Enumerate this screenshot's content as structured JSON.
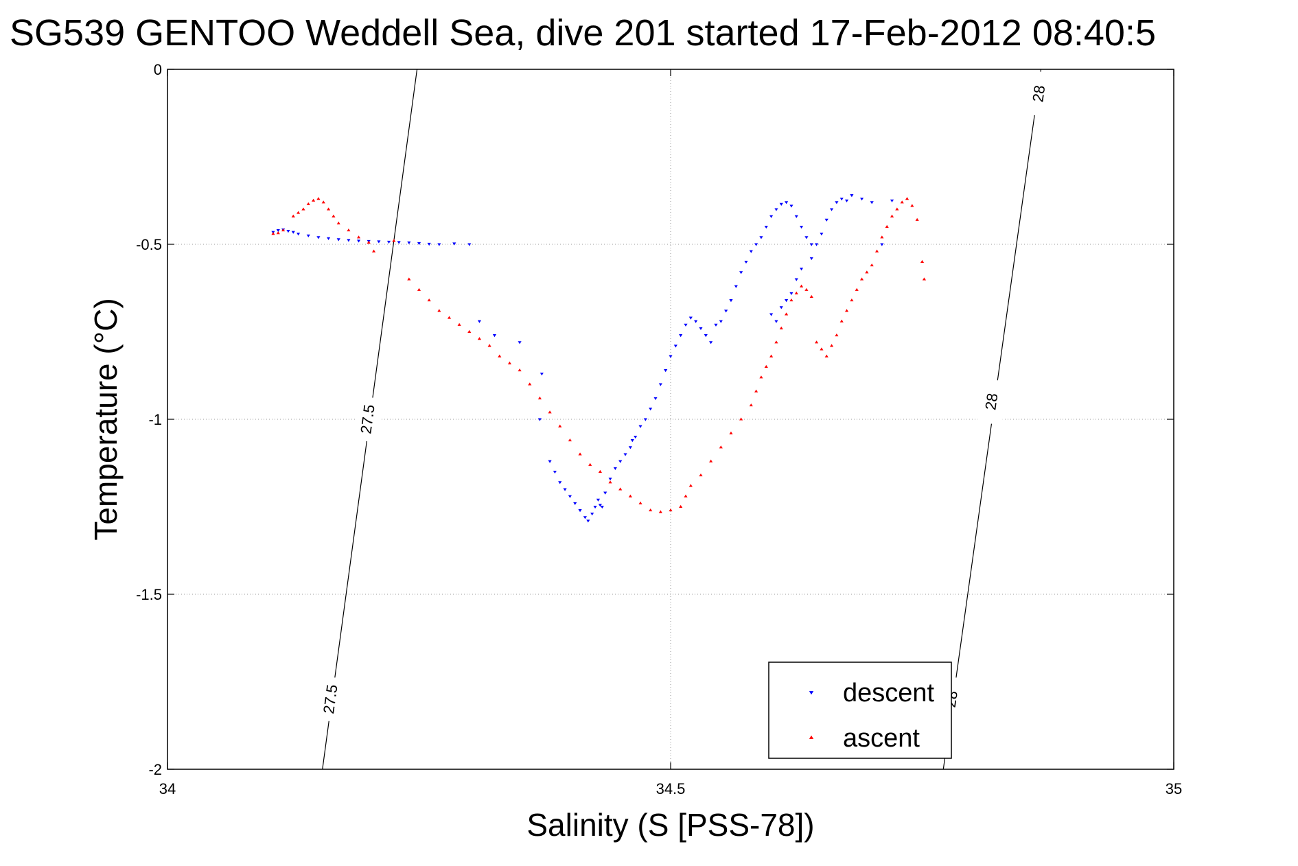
{
  "chart_data": {
    "type": "scatter",
    "title": "SG539 GENTOO Weddell Sea, dive 201 started 17-Feb-2012 08:40:5",
    "xlabel": "Salinity (S [PSS-78])",
    "ylabel": "Temperature (°C)",
    "xlim": [
      34,
      35
    ],
    "ylim": [
      -2,
      0
    ],
    "x_ticks": [
      34,
      34.5,
      35
    ],
    "x_tick_labels": [
      "34",
      "34.5",
      "35"
    ],
    "y_ticks": [
      0,
      -0.5,
      -1,
      -1.5,
      -2
    ],
    "y_tick_labels": [
      "0",
      "-0.5",
      "-1",
      "-1.5",
      "-2"
    ],
    "grid": true,
    "legend_position": "bottom-right",
    "contours": [
      {
        "value": 27.5,
        "points": [
          [
            34.248,
            0
          ],
          [
            34.154,
            -2
          ]
        ],
        "labels": [
          {
            "text": "27.5",
            "x": 34.2,
            "y": -1.0
          },
          {
            "text": "27.5",
            "x": 34.163,
            "y": -1.8
          }
        ]
      },
      {
        "value": 28,
        "points": [
          [
            34.868,
            0
          ],
          [
            34.771,
            -2
          ]
        ],
        "labels": [
          {
            "text": "28",
            "x": 34.867,
            "y": -0.07
          },
          {
            "text": "28",
            "x": 34.82,
            "y": -0.95
          },
          {
            "text": "28",
            "x": 34.78,
            "y": -1.8
          }
        ]
      }
    ],
    "series": [
      {
        "name": "descent",
        "marker": "triangle-down",
        "color": "#0000ff",
        "points": [
          [
            34.105,
            -0.465
          ],
          [
            34.11,
            -0.46
          ],
          [
            34.115,
            -0.458
          ],
          [
            34.12,
            -0.462
          ],
          [
            34.125,
            -0.465
          ],
          [
            34.13,
            -0.47
          ],
          [
            34.14,
            -0.475
          ],
          [
            34.15,
            -0.48
          ],
          [
            34.16,
            -0.483
          ],
          [
            34.17,
            -0.486
          ],
          [
            34.18,
            -0.488
          ],
          [
            34.19,
            -0.49
          ],
          [
            34.2,
            -0.491
          ],
          [
            34.21,
            -0.492
          ],
          [
            34.22,
            -0.493
          ],
          [
            34.23,
            -0.494
          ],
          [
            34.24,
            -0.495
          ],
          [
            34.25,
            -0.497
          ],
          [
            34.26,
            -0.499
          ],
          [
            34.27,
            -0.5
          ],
          [
            34.285,
            -0.498
          ],
          [
            34.3,
            -0.5
          ],
          [
            34.31,
            -0.72
          ],
          [
            34.325,
            -0.76
          ],
          [
            34.35,
            -0.78
          ],
          [
            34.372,
            -0.87
          ],
          [
            34.37,
            -1.0
          ],
          [
            34.38,
            -1.12
          ],
          [
            34.385,
            -1.15
          ],
          [
            34.39,
            -1.18
          ],
          [
            34.395,
            -1.2
          ],
          [
            34.4,
            -1.22
          ],
          [
            34.405,
            -1.24
          ],
          [
            34.41,
            -1.26
          ],
          [
            34.415,
            -1.28
          ],
          [
            34.418,
            -1.29
          ],
          [
            34.422,
            -1.27
          ],
          [
            34.425,
            -1.25
          ],
          [
            34.428,
            -1.23
          ],
          [
            34.43,
            -1.245
          ],
          [
            34.432,
            -1.25
          ],
          [
            34.435,
            -1.21
          ],
          [
            34.44,
            -1.17
          ],
          [
            34.445,
            -1.14
          ],
          [
            34.45,
            -1.12
          ],
          [
            34.455,
            -1.1
          ],
          [
            34.46,
            -1.08
          ],
          [
            34.462,
            -1.06
          ],
          [
            34.465,
            -1.05
          ],
          [
            34.47,
            -1.02
          ],
          [
            34.475,
            -1.0
          ],
          [
            34.48,
            -0.97
          ],
          [
            34.485,
            -0.94
          ],
          [
            34.49,
            -0.9
          ],
          [
            34.495,
            -0.86
          ],
          [
            34.5,
            -0.82
          ],
          [
            34.505,
            -0.79
          ],
          [
            34.51,
            -0.76
          ],
          [
            34.515,
            -0.73
          ],
          [
            34.52,
            -0.71
          ],
          [
            34.525,
            -0.72
          ],
          [
            34.53,
            -0.74
          ],
          [
            34.535,
            -0.76
          ],
          [
            34.54,
            -0.78
          ],
          [
            34.545,
            -0.73
          ],
          [
            34.55,
            -0.72
          ],
          [
            34.555,
            -0.69
          ],
          [
            34.56,
            -0.66
          ],
          [
            34.565,
            -0.62
          ],
          [
            34.57,
            -0.58
          ],
          [
            34.575,
            -0.55
          ],
          [
            34.58,
            -0.52
          ],
          [
            34.585,
            -0.5
          ],
          [
            34.59,
            -0.48
          ],
          [
            34.595,
            -0.45
          ],
          [
            34.6,
            -0.42
          ],
          [
            34.605,
            -0.4
          ],
          [
            34.61,
            -0.385
          ],
          [
            34.615,
            -0.38
          ],
          [
            34.62,
            -0.39
          ],
          [
            34.625,
            -0.42
          ],
          [
            34.63,
            -0.45
          ],
          [
            34.635,
            -0.48
          ],
          [
            34.64,
            -0.5
          ],
          [
            34.6,
            -0.7
          ],
          [
            34.605,
            -0.72
          ],
          [
            34.61,
            -0.68
          ],
          [
            34.615,
            -0.66
          ],
          [
            34.62,
            -0.64
          ],
          [
            34.625,
            -0.6
          ],
          [
            34.63,
            -0.57
          ],
          [
            34.64,
            -0.54
          ],
          [
            34.645,
            -0.5
          ],
          [
            34.65,
            -0.47
          ],
          [
            34.655,
            -0.43
          ],
          [
            34.66,
            -0.4
          ],
          [
            34.665,
            -0.38
          ],
          [
            34.67,
            -0.37
          ],
          [
            34.675,
            -0.375
          ],
          [
            34.68,
            -0.36
          ],
          [
            34.69,
            -0.37
          ],
          [
            34.7,
            -0.38
          ],
          [
            34.71,
            -0.5
          ],
          [
            34.72,
            -0.375
          ]
        ]
      },
      {
        "name": "ascent",
        "marker": "triangle-up",
        "color": "#ff0000",
        "points": [
          [
            34.105,
            -0.47
          ],
          [
            34.11,
            -0.468
          ],
          [
            34.115,
            -0.46
          ],
          [
            34.125,
            -0.42
          ],
          [
            34.13,
            -0.41
          ],
          [
            34.135,
            -0.4
          ],
          [
            34.14,
            -0.385
          ],
          [
            34.145,
            -0.375
          ],
          [
            34.15,
            -0.37
          ],
          [
            34.155,
            -0.38
          ],
          [
            34.16,
            -0.4
          ],
          [
            34.165,
            -0.42
          ],
          [
            34.17,
            -0.44
          ],
          [
            34.18,
            -0.46
          ],
          [
            34.19,
            -0.48
          ],
          [
            34.2,
            -0.495
          ],
          [
            34.205,
            -0.52
          ],
          [
            34.225,
            -0.49
          ],
          [
            34.24,
            -0.6
          ],
          [
            34.25,
            -0.63
          ],
          [
            34.26,
            -0.66
          ],
          [
            34.27,
            -0.69
          ],
          [
            34.28,
            -0.71
          ],
          [
            34.29,
            -0.73
          ],
          [
            34.3,
            -0.75
          ],
          [
            34.31,
            -0.77
          ],
          [
            34.32,
            -0.79
          ],
          [
            34.33,
            -0.82
          ],
          [
            34.34,
            -0.84
          ],
          [
            34.35,
            -0.86
          ],
          [
            34.36,
            -0.9
          ],
          [
            34.37,
            -0.94
          ],
          [
            34.38,
            -0.98
          ],
          [
            34.39,
            -1.02
          ],
          [
            34.4,
            -1.06
          ],
          [
            34.41,
            -1.1
          ],
          [
            34.42,
            -1.13
          ],
          [
            34.43,
            -1.15
          ],
          [
            34.44,
            -1.18
          ],
          [
            34.45,
            -1.2
          ],
          [
            34.46,
            -1.22
          ],
          [
            34.47,
            -1.24
          ],
          [
            34.48,
            -1.26
          ],
          [
            34.49,
            -1.265
          ],
          [
            34.5,
            -1.26
          ],
          [
            34.51,
            -1.25
          ],
          [
            34.515,
            -1.22
          ],
          [
            34.52,
            -1.19
          ],
          [
            34.53,
            -1.16
          ],
          [
            34.54,
            -1.12
          ],
          [
            34.55,
            -1.08
          ],
          [
            34.56,
            -1.04
          ],
          [
            34.57,
            -1.0
          ],
          [
            34.58,
            -0.96
          ],
          [
            34.585,
            -0.92
          ],
          [
            34.59,
            -0.88
          ],
          [
            34.595,
            -0.85
          ],
          [
            34.6,
            -0.82
          ],
          [
            34.605,
            -0.78
          ],
          [
            34.61,
            -0.74
          ],
          [
            34.615,
            -0.7
          ],
          [
            34.62,
            -0.66
          ],
          [
            34.625,
            -0.64
          ],
          [
            34.63,
            -0.62
          ],
          [
            34.635,
            -0.63
          ],
          [
            34.64,
            -0.65
          ],
          [
            34.645,
            -0.78
          ],
          [
            34.65,
            -0.8
          ],
          [
            34.655,
            -0.82
          ],
          [
            34.66,
            -0.79
          ],
          [
            34.665,
            -0.76
          ],
          [
            34.67,
            -0.72
          ],
          [
            34.675,
            -0.69
          ],
          [
            34.68,
            -0.66
          ],
          [
            34.685,
            -0.63
          ],
          [
            34.69,
            -0.6
          ],
          [
            34.695,
            -0.58
          ],
          [
            34.7,
            -0.56
          ],
          [
            34.705,
            -0.52
          ],
          [
            34.71,
            -0.48
          ],
          [
            34.715,
            -0.45
          ],
          [
            34.72,
            -0.42
          ],
          [
            34.725,
            -0.4
          ],
          [
            34.73,
            -0.38
          ],
          [
            34.735,
            -0.37
          ],
          [
            34.74,
            -0.39
          ],
          [
            34.745,
            -0.43
          ],
          [
            34.75,
            -0.55
          ],
          [
            34.752,
            -0.6
          ]
        ]
      }
    ]
  }
}
